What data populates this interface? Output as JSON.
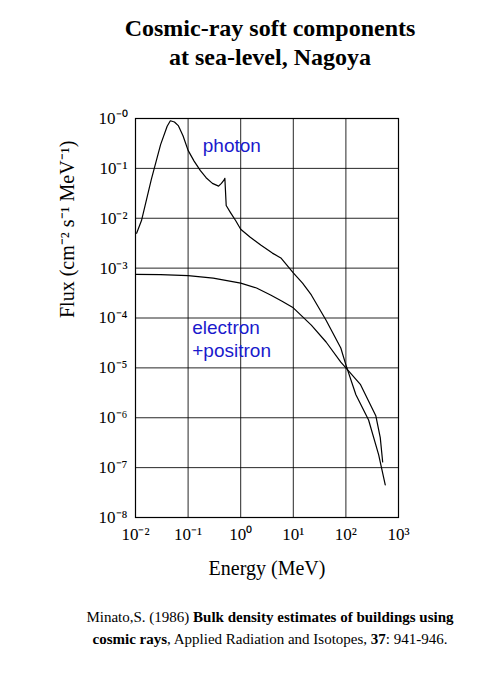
{
  "chart_data": {
    "type": "line",
    "title": "Cosmic-ray soft components\nat sea-level, Nagoya",
    "x_label": "Energy (MeV)",
    "y_label": "Flux (cm⁻² s⁻¹ MeV⁻¹)",
    "log": true,
    "grid": true,
    "xlim": [
      0.01,
      1000
    ],
    "ylim": [
      1e-08,
      1
    ],
    "xticks": [
      {
        "value": 0.01,
        "label": "10⁻²"
      },
      {
        "value": 0.1,
        "label": "10⁻¹"
      },
      {
        "value": 1,
        "label": "10⁰"
      },
      {
        "value": 10,
        "label": "10¹"
      },
      {
        "value": 100,
        "label": "10²"
      },
      {
        "value": 1000,
        "label": "10³"
      }
    ],
    "yticks": [
      {
        "value": 1,
        "label": "10⁻⁰"
      },
      {
        "value": 0.1,
        "label": "10⁻¹"
      },
      {
        "value": 0.01,
        "label": "10⁻²"
      },
      {
        "value": 0.001,
        "label": "10⁻³"
      },
      {
        "value": 0.0001,
        "label": "10⁻⁴"
      },
      {
        "value": 1e-05,
        "label": "10⁻⁵"
      },
      {
        "value": 1e-06,
        "label": "10⁻⁶"
      },
      {
        "value": 1e-07,
        "label": "10⁻⁷"
      },
      {
        "value": 1e-08,
        "label": "10⁻⁸"
      }
    ],
    "series": [
      {
        "name": "photon",
        "color": "#000000",
        "x": [
          0.0105,
          0.013,
          0.02,
          0.03,
          0.04,
          0.046,
          0.055,
          0.065,
          0.08,
          0.1,
          0.13,
          0.17,
          0.22,
          0.29,
          0.38,
          0.43,
          0.48,
          0.5,
          0.53,
          0.64,
          0.8,
          1,
          1.5,
          2.4,
          4,
          5.8,
          10,
          15,
          22,
          42,
          80,
          100,
          155,
          270,
          420,
          560
        ],
        "values": [
          0.005,
          0.009,
          0.06,
          0.3,
          0.7,
          0.9,
          0.85,
          0.72,
          0.45,
          0.23,
          0.14,
          0.091,
          0.065,
          0.05,
          0.044,
          0.05,
          0.058,
          0.063,
          0.018,
          0.013,
          0.009,
          0.006,
          0.0042,
          0.0029,
          0.002,
          0.0016,
          0.0008,
          0.0005,
          0.00029,
          9e-05,
          2.5e-05,
          1.15e-05,
          2.9e-06,
          9e-07,
          1.8e-07,
          4.5e-08
        ]
      },
      {
        "name": "electron\n+positron",
        "color": "#000000",
        "x": [
          0.01,
          0.03,
          0.1,
          0.3,
          1,
          2,
          3.7,
          6,
          10,
          22,
          42,
          80,
          100,
          190,
          370,
          450,
          500
        ],
        "values": [
          0.00075,
          0.00074,
          0.00071,
          0.00063,
          0.0005,
          0.0004,
          0.00029,
          0.00022,
          0.00016,
          7.2e-05,
          3.3e-05,
          1.3e-05,
          1e-05,
          4.6e-06,
          1.1e-06,
          4e-07,
          1.3e-07
        ]
      }
    ],
    "annotations": [
      {
        "text": "photon",
        "x": 0.19,
        "y": 0.3,
        "color": "#1a1acc"
      },
      {
        "text": "electron\n+positron",
        "x": 0.12,
        "y": 4e-05,
        "color": "#1a1acc"
      }
    ],
    "caption": {
      "reference": "Minato,S. (1986)",
      "article": "Bulk density estimates of buildings using cosmic rays",
      "journal": ", Applied Radiation and Isotopes,",
      "volume": "37",
      "pages": ": 941-946."
    }
  }
}
